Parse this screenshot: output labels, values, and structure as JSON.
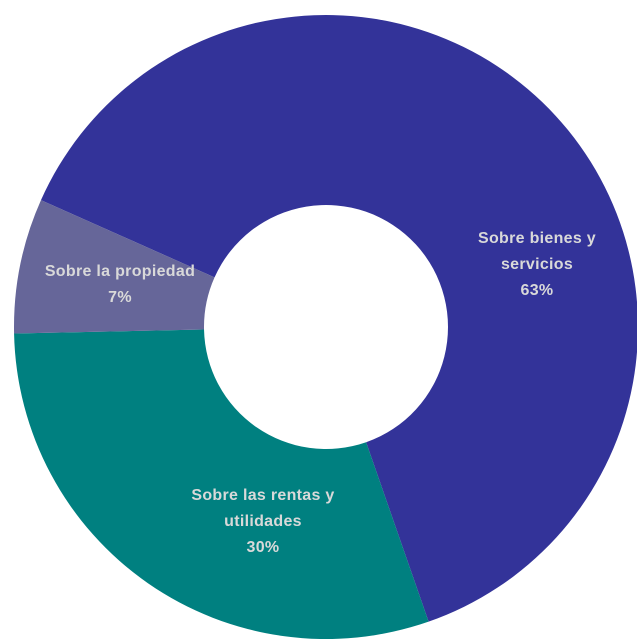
{
  "chart_data": {
    "type": "donut",
    "categories": [
      "Sobre bienes y servicios",
      "Sobre las rentas y utilidades",
      "Sobre la propiedad"
    ],
    "values": [
      63,
      30,
      7
    ],
    "value_labels": [
      "63%",
      "30%",
      "7%"
    ],
    "colors": [
      "#333399",
      "#008080",
      "#666699"
    ]
  }
}
